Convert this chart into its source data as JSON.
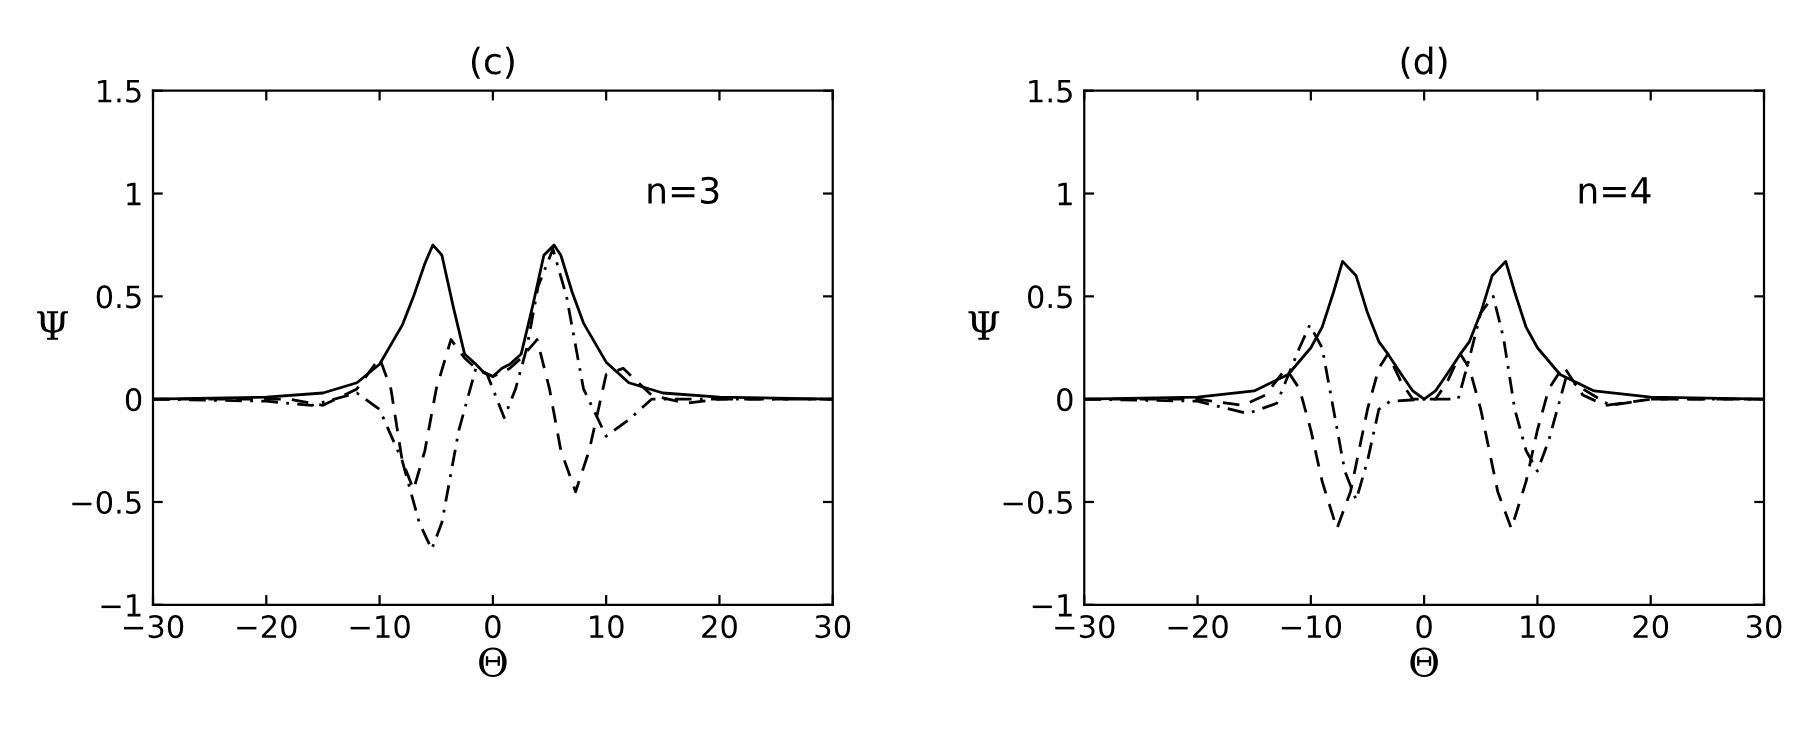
{
  "chart_data": [
    {
      "type": "line",
      "title": "(c)",
      "xlabel": "Θ",
      "ylabel": "Ψ",
      "annotations": [
        "n=3"
      ],
      "xlim": [
        -30,
        30
      ],
      "ylim": [
        -1,
        1.5
      ],
      "xticks": [
        -30,
        -20,
        -10,
        0,
        10,
        20,
        30
      ],
      "yticks": [
        -1,
        -0.5,
        0,
        0.5,
        1,
        1.5
      ],
      "grid": false,
      "legend": false,
      "marker": "none",
      "series": [
        {
          "color": "#000000",
          "line_style": "solid",
          "x": [
            -30,
            -20,
            -15,
            -12,
            -10,
            -8,
            -7,
            -6,
            -5.3,
            -4.5,
            -3.5,
            -2.5,
            -1.5,
            -0.8,
            0,
            0.8,
            1.5,
            2.5,
            3.5,
            4.5,
            5.4,
            6,
            7,
            8,
            10,
            12,
            15,
            20,
            30
          ],
          "values": [
            0,
            0.01,
            0.03,
            0.08,
            0.17,
            0.36,
            0.5,
            0.66,
            0.75,
            0.7,
            0.45,
            0.22,
            0.17,
            0.13,
            0.11,
            0.15,
            0.17,
            0.22,
            0.45,
            0.7,
            0.75,
            0.7,
            0.52,
            0.37,
            0.18,
            0.08,
            0.03,
            0.01,
            0
          ]
        },
        {
          "color": "#000000",
          "line_style": "dashed",
          "x": [
            -30,
            -18,
            -15,
            -12,
            -10,
            -9,
            -8,
            -7,
            -6,
            -5,
            -3.7,
            -2.5,
            -1.5,
            0,
            1.5,
            2.5,
            3.9,
            5,
            6,
            7.3,
            8.5,
            10,
            11.5,
            14,
            17,
            20,
            30
          ],
          "values": [
            0,
            0,
            -0.03,
            0.05,
            0.2,
            0.05,
            -0.3,
            -0.44,
            -0.25,
            0.05,
            0.29,
            0.2,
            0.15,
            0.11,
            0.15,
            0.2,
            0.29,
            0.05,
            -0.25,
            -0.45,
            -0.25,
            0.12,
            0.15,
            0.02,
            -0.02,
            0,
            0
          ]
        },
        {
          "color": "#000000",
          "line_style": "dashdot",
          "x": [
            -30,
            -20,
            -16,
            -12,
            -10,
            -8,
            -6.5,
            -5.4,
            -4.5,
            -3,
            -1.5,
            -0.5,
            1,
            2,
            3,
            4,
            5.3,
            6.5,
            8,
            10,
            12,
            14,
            17,
            20,
            30
          ],
          "values": [
            0,
            -0.01,
            -0.03,
            0.03,
            -0.05,
            -0.3,
            -0.6,
            -0.73,
            -0.6,
            -0.15,
            0.15,
            0.12,
            -0.09,
            0.05,
            0.25,
            0.55,
            0.73,
            0.5,
            0.05,
            -0.18,
            -0.1,
            0,
            0,
            0,
            0
          ]
        }
      ]
    },
    {
      "type": "line",
      "title": "(d)",
      "xlabel": "Θ",
      "ylabel": "Ψ",
      "annotations": [
        "n=4"
      ],
      "xlim": [
        -30,
        30
      ],
      "ylim": [
        -1,
        1.5
      ],
      "xticks": [
        -30,
        -20,
        -10,
        0,
        10,
        20,
        30
      ],
      "yticks": [
        -1,
        -0.5,
        0,
        0.5,
        1,
        1.5
      ],
      "grid": false,
      "legend": false,
      "marker": "none",
      "series": [
        {
          "color": "#000000",
          "line_style": "solid",
          "x": [
            -30,
            -20,
            -15,
            -12,
            -10,
            -9,
            -8,
            -7.2,
            -6,
            -5,
            -4,
            -3.2,
            -2,
            -1,
            0,
            1,
            2,
            3.2,
            4,
            5,
            6,
            7.2,
            8,
            9,
            10,
            12,
            15,
            20,
            30
          ],
          "values": [
            0,
            0.01,
            0.04,
            0.12,
            0.25,
            0.35,
            0.52,
            0.67,
            0.6,
            0.42,
            0.28,
            0.22,
            0.12,
            0.04,
            0,
            0.04,
            0.12,
            0.22,
            0.28,
            0.42,
            0.6,
            0.67,
            0.52,
            0.35,
            0.25,
            0.12,
            0.04,
            0.01,
            0
          ]
        },
        {
          "color": "#000000",
          "line_style": "dashed",
          "x": [
            -30,
            -20,
            -16,
            -14,
            -12.2,
            -11,
            -10,
            -9,
            -7.7,
            -6.5,
            -5,
            -4,
            -3.2,
            -2,
            -1,
            0,
            1,
            2,
            3.2,
            4,
            5,
            6.5,
            7.7,
            9,
            10,
            11,
            12.3,
            14,
            16,
            20,
            30
          ],
          "values": [
            0,
            0,
            -0.03,
            0.02,
            0.15,
            0.05,
            -0.15,
            -0.4,
            -0.63,
            -0.45,
            -0.05,
            0.15,
            0.22,
            0.08,
            0,
            0,
            0,
            0.08,
            0.22,
            0.15,
            -0.05,
            -0.45,
            -0.63,
            -0.4,
            -0.15,
            0.05,
            0.16,
            0.02,
            -0.03,
            0,
            0
          ]
        },
        {
          "color": "#000000",
          "line_style": "dashdot",
          "x": [
            -30,
            -20,
            -15.6,
            -13,
            -11,
            -10.1,
            -9,
            -8,
            -7,
            -6,
            -5,
            -4,
            -3,
            0,
            3,
            4,
            5,
            6.1,
            7,
            8,
            9,
            10,
            11,
            12.5,
            14,
            16.4,
            20,
            30
          ],
          "values": [
            0,
            -0.01,
            -0.07,
            -0.02,
            0.25,
            0.36,
            0.25,
            -0.05,
            -0.35,
            -0.49,
            -0.3,
            -0.05,
            -0.01,
            0,
            0,
            0.2,
            0.42,
            0.5,
            0.3,
            -0.05,
            -0.25,
            -0.35,
            -0.2,
            0.1,
            0.05,
            -0.03,
            0,
            0
          ]
        }
      ]
    }
  ]
}
